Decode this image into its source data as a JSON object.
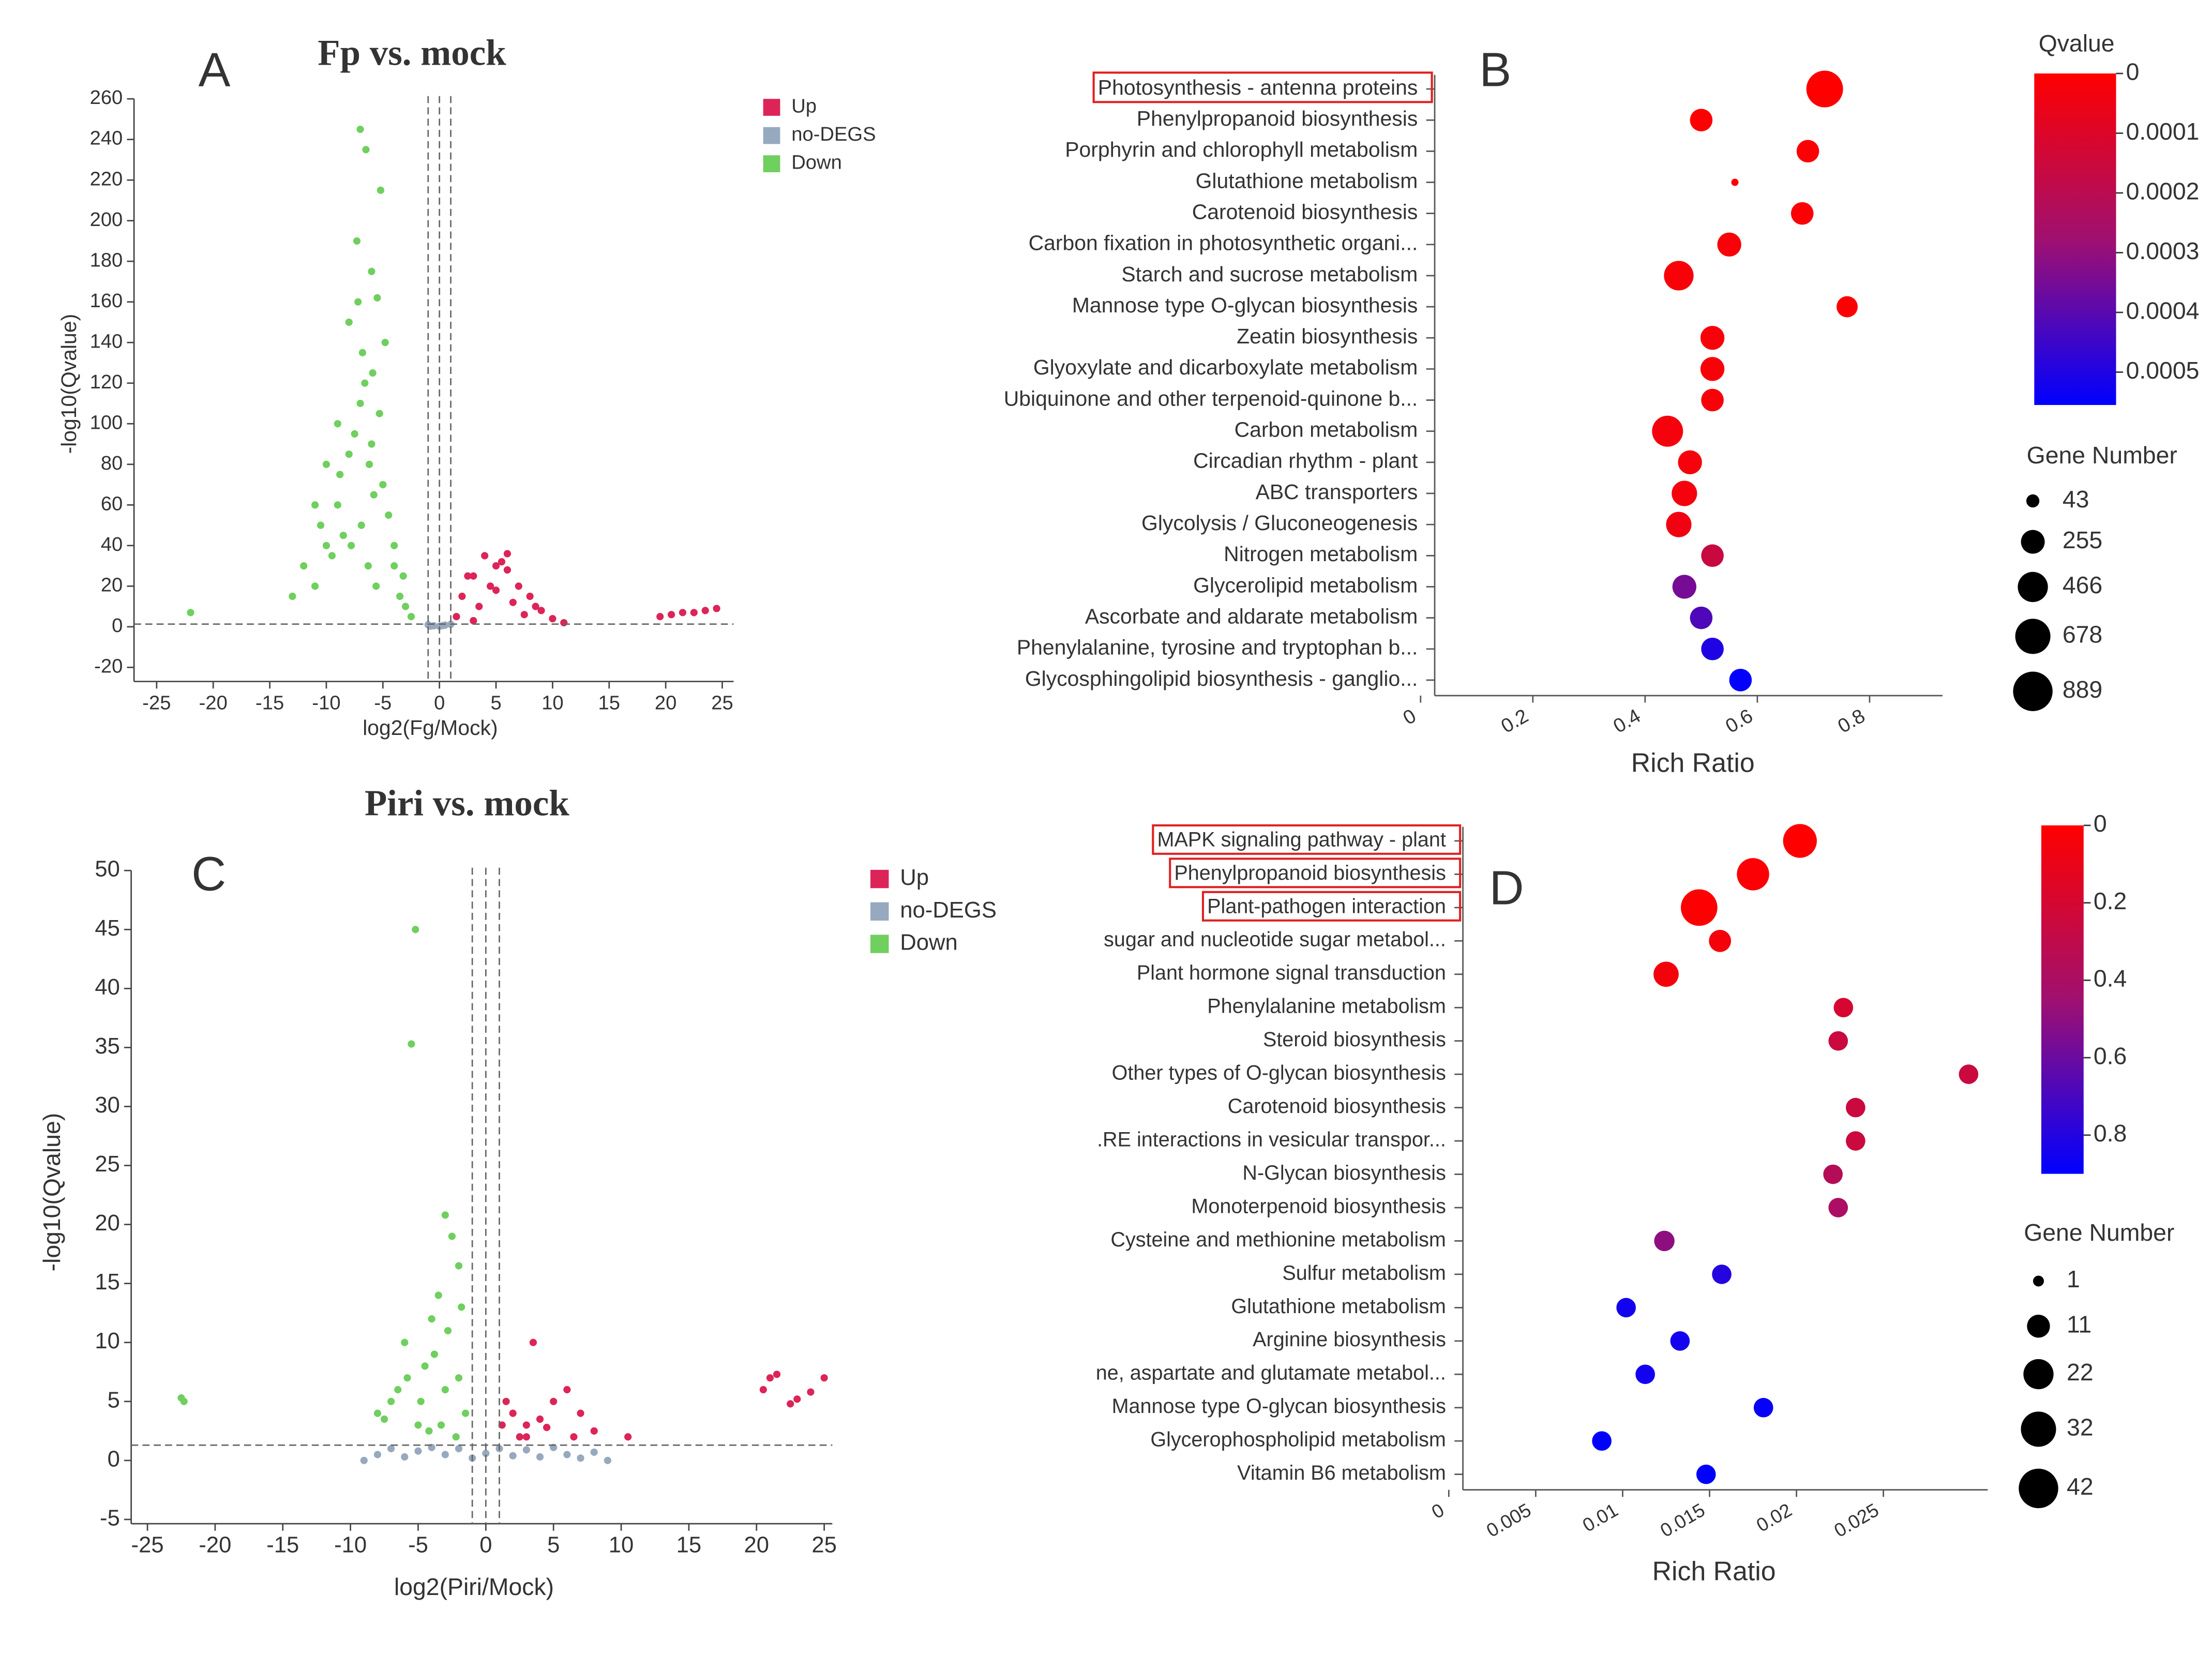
{
  "chart_data": [
    {
      "type": "scatter",
      "panel": "A",
      "title": "Fp  vs. mock",
      "x_label": "log2(Fg/Mock)",
      "y_label": "-log10(Qvalue)",
      "xlim": [
        -27,
        26
      ],
      "ylim": [
        -20,
        260
      ],
      "xticks": [
        -25,
        -20,
        -15,
        -10,
        -5,
        0,
        5,
        10,
        15,
        20,
        25
      ],
      "yticks": [
        -20,
        0,
        20,
        40,
        60,
        80,
        100,
        120,
        140,
        160,
        180,
        200,
        220,
        240,
        260
      ],
      "threshold_x": [
        -1,
        0,
        1
      ],
      "threshold_y": 1.3,
      "series": [
        {
          "name": "Up",
          "color": "#dc2458",
          "x": [
            1.5,
            2,
            3,
            4,
            5,
            6,
            7,
            8,
            9,
            10,
            11,
            3.5,
            4.5,
            5.5,
            6.5,
            2.5,
            7.5,
            8.5,
            19.5,
            20.5,
            21.5,
            22.5,
            23.5,
            24.5,
            3,
            5,
            6
          ],
          "y": [
            5,
            15,
            25,
            35,
            30,
            28,
            20,
            15,
            8,
            4,
            2,
            10,
            20,
            32,
            12,
            25,
            6,
            10,
            5,
            6,
            7,
            7,
            8,
            9,
            3,
            18,
            36
          ]
        },
        {
          "name": "no-DEGS",
          "color": "#97a9be",
          "x": [
            -1,
            -0.5,
            0,
            0.5,
            1,
            -0.8,
            0.3
          ],
          "y": [
            1,
            0.5,
            0.2,
            0.8,
            1.2,
            0.3,
            0.6
          ]
        },
        {
          "name": "Down",
          "color": "#6fcf5f",
          "x": [
            -7,
            -6.5,
            -5.2,
            -7.3,
            -6,
            -5.5,
            -8,
            -4.8,
            -6.8,
            -5.9,
            -9,
            -10,
            -11,
            -12,
            -13,
            -3,
            -2.5,
            -4,
            -5,
            -6,
            -7,
            -8,
            -9,
            -10,
            -11,
            -4,
            -3.5,
            -6.2,
            -7.5,
            -5.8,
            -8.5,
            -6.6,
            -4.5,
            -9.5,
            -22,
            -7.2,
            -5.3,
            -6.9,
            -3.2,
            -8.8,
            -10.5,
            -5.6,
            -6.3,
            -7.8
          ],
          "y": [
            245,
            235,
            215,
            190,
            175,
            162,
            150,
            140,
            135,
            125,
            100,
            80,
            60,
            30,
            15,
            10,
            5,
            40,
            70,
            90,
            110,
            85,
            60,
            40,
            20,
            30,
            15,
            80,
            95,
            65,
            45,
            120,
            55,
            35,
            7,
            160,
            105,
            50,
            25,
            75,
            50,
            20,
            30,
            40
          ]
        }
      ]
    },
    {
      "type": "bubble",
      "panel": "B",
      "x_label": "Rich Ratio",
      "categories": [
        "Photosynthesis - antenna proteins",
        "Phenylpropanoid biosynthesis",
        "Porphyrin and chlorophyll metabolism",
        "Glutathione metabolism",
        "Carotenoid biosynthesis",
        "Carbon fixation in photosynthetic organi...",
        "Starch and sucrose metabolism",
        "Mannose type O-glycan biosynthesis",
        "Zeatin biosynthesis",
        "Glyoxylate and dicarboxylate metabolism",
        "Ubiquinone and other terpenoid-quinone b...",
        "Carbon metabolism",
        "Circadian rhythm - plant",
        "ABC transporters",
        "Glycolysis / Gluconeogenesis",
        "Nitrogen metabolism",
        "Glycerolipid metabolism",
        "Ascorbate and aldarate metabolism",
        "Phenylalanine, tyrosine and tryptophan b...",
        "Glycosphingolipid biosynthesis - ganglio..."
      ],
      "values": [
        0.72,
        0.5,
        0.69,
        0.56,
        0.68,
        0.55,
        0.46,
        0.76,
        0.52,
        0.52,
        0.52,
        0.44,
        0.48,
        0.47,
        0.46,
        0.52,
        0.47,
        0.5,
        0.52,
        0.57
      ],
      "sizes": [
        747,
        222,
        222,
        2,
        222,
        260,
        446,
        187,
        260,
        260,
        222,
        500,
        260,
        303,
        303,
        222,
        260,
        222,
        222,
        222
      ],
      "qvalues": [
        0,
        1e-05,
        1e-05,
        1e-05,
        1e-05,
        2e-05,
        2e-05,
        1e-05,
        2e-05,
        2e-05,
        2e-05,
        3e-05,
        3e-05,
        3e-05,
        4e-05,
        0.00016,
        0.00035,
        0.00042,
        0.0005,
        0.00055
      ],
      "xlim": [
        0,
        0.93
      ],
      "xticks": [
        0,
        0.2,
        0.4,
        0.6,
        0.8
      ],
      "color_label": "Qvalue",
      "clim": [
        0,
        0.000555
      ],
      "cticks": [
        0,
        0.0001,
        0.0002,
        0.0003,
        0.0004,
        0.0005
      ],
      "colormap": [
        "#ff0000",
        "#a01070",
        "#0000ff"
      ],
      "size_label": "Gene Number",
      "size_legend": [
        43,
        255,
        466,
        678,
        889
      ],
      "highlight": [
        0
      ]
    },
    {
      "type": "scatter",
      "panel": "C",
      "title": "Piri  vs. mock",
      "x_label": "log2(Piri/Mock)",
      "y_label": "-log10(Qvalue)",
      "xlim": [
        -26.2,
        25.6
      ],
      "ylim": [
        -5,
        50
      ],
      "xticks": [
        -25,
        -20,
        -15,
        -10,
        -5,
        0,
        5,
        10,
        15,
        20,
        25
      ],
      "yticks": [
        -5,
        0,
        5,
        10,
        15,
        20,
        25,
        30,
        35,
        40,
        45,
        50
      ],
      "threshold_x": [
        -1,
        0,
        1
      ],
      "threshold_y": 1.3,
      "series": [
        {
          "name": "Up",
          "color": "#dc2458",
          "x": [
            3.5,
            1.5,
            2,
            3,
            4,
            5,
            6,
            7,
            8,
            1.2,
            2.5,
            4.5,
            10.5,
            20.5,
            21,
            21.5,
            22.5,
            23,
            24,
            25,
            6.5,
            3
          ],
          "y": [
            10,
            5,
            4,
            3,
            3.5,
            5,
            6,
            4,
            2.5,
            3,
            2,
            2.8,
            2,
            6,
            7,
            7.3,
            4.8,
            5.2,
            5.8,
            7,
            2,
            2
          ]
        },
        {
          "name": "no-DEGS",
          "color": "#97a9be",
          "x": [
            -9,
            -8,
            -7,
            -6,
            -5,
            -4,
            -3,
            -2,
            -1,
            0,
            1,
            2,
            3,
            4,
            5,
            6,
            7,
            8,
            9
          ],
          "y": [
            0,
            0.5,
            1,
            0.3,
            0.8,
            1.1,
            0.5,
            1,
            0.2,
            0.6,
            1,
            0.4,
            0.9,
            0.3,
            1.1,
            0.5,
            0.2,
            0.7,
            0
          ]
        },
        {
          "name": "Down",
          "color": "#6fcf5f",
          "x": [
            -5.2,
            -5.5,
            -3,
            -2.5,
            -2,
            -3.5,
            -4,
            -6,
            -7,
            -8,
            -4.5,
            -3,
            -2,
            -1.5,
            -22.5,
            -22.3,
            -5,
            -6.5,
            -3.8,
            -2.8,
            -4.2,
            -7.5,
            -2.2,
            -3.3,
            -5.8,
            -1.8,
            -4.8
          ],
          "y": [
            45,
            35.3,
            20.8,
            19,
            16.5,
            14,
            12,
            10,
            5,
            4,
            8,
            6,
            7,
            4,
            5.3,
            5,
            3,
            6,
            9,
            11,
            2.5,
            3.5,
            2,
            3,
            7,
            13,
            5
          ]
        }
      ]
    },
    {
      "type": "bubble",
      "panel": "D",
      "x_label": "Rich Ratio",
      "categories": [
        "MAPK signaling pathway - plant",
        "Phenylpropanoid biosynthesis",
        "Plant-pathogen interaction",
        "sugar and nucleotide sugar metabol...",
        "Plant hormone signal transduction",
        "Phenylalanine metabolism",
        "Steroid biosynthesis",
        "Other types of O-glycan biosynthesis",
        "Carotenoid biosynthesis",
        ".RE interactions in vesicular transpor...",
        "N-Glycan biosynthesis",
        "Monoterpenoid biosynthesis",
        "Cysteine and methionine metabolism",
        "Sulfur metabolism",
        "Glutathione metabolism",
        "Arginine biosynthesis",
        "ne, aspartate and glutamate metabol...",
        "Mannose type O-glycan biosynthesis",
        "Glycerophospholipid metabolism",
        "Vitamin B6 metabolism"
      ],
      "values": [
        0.0202,
        0.0175,
        0.0144,
        0.0156,
        0.0125,
        0.0227,
        0.0224,
        0.0299,
        0.0234,
        0.0234,
        0.0221,
        0.0224,
        0.0124,
        0.0157,
        0.0102,
        0.0133,
        0.0113,
        0.0181,
        0.0088,
        0.0148
      ],
      "sizes": [
        29,
        26,
        35,
        10,
        14,
        7,
        7,
        7,
        7,
        7,
        7,
        7,
        8,
        7,
        7,
        7,
        7,
        7,
        7,
        7
      ],
      "qvalues": [
        0,
        0.02,
        0.01,
        0.05,
        0.05,
        0.2,
        0.25,
        0.25,
        0.25,
        0.25,
        0.35,
        0.4,
        0.5,
        0.8,
        0.85,
        0.85,
        0.85,
        0.88,
        0.9,
        0.9
      ],
      "xlim": [
        0,
        0.031
      ],
      "xticks": [
        0,
        0.005,
        0.01,
        0.015,
        0.02,
        0.025
      ],
      "clim": [
        0,
        0.9
      ],
      "cticks": [
        0,
        0.2,
        0.4,
        0.6,
        0.8
      ],
      "colormap": [
        "#ff0000",
        "#a01070",
        "#0000ff"
      ],
      "size_label": "Gene Number",
      "size_legend": [
        1,
        11,
        22,
        32,
        42
      ],
      "highlight": [
        0,
        1,
        2
      ]
    }
  ]
}
